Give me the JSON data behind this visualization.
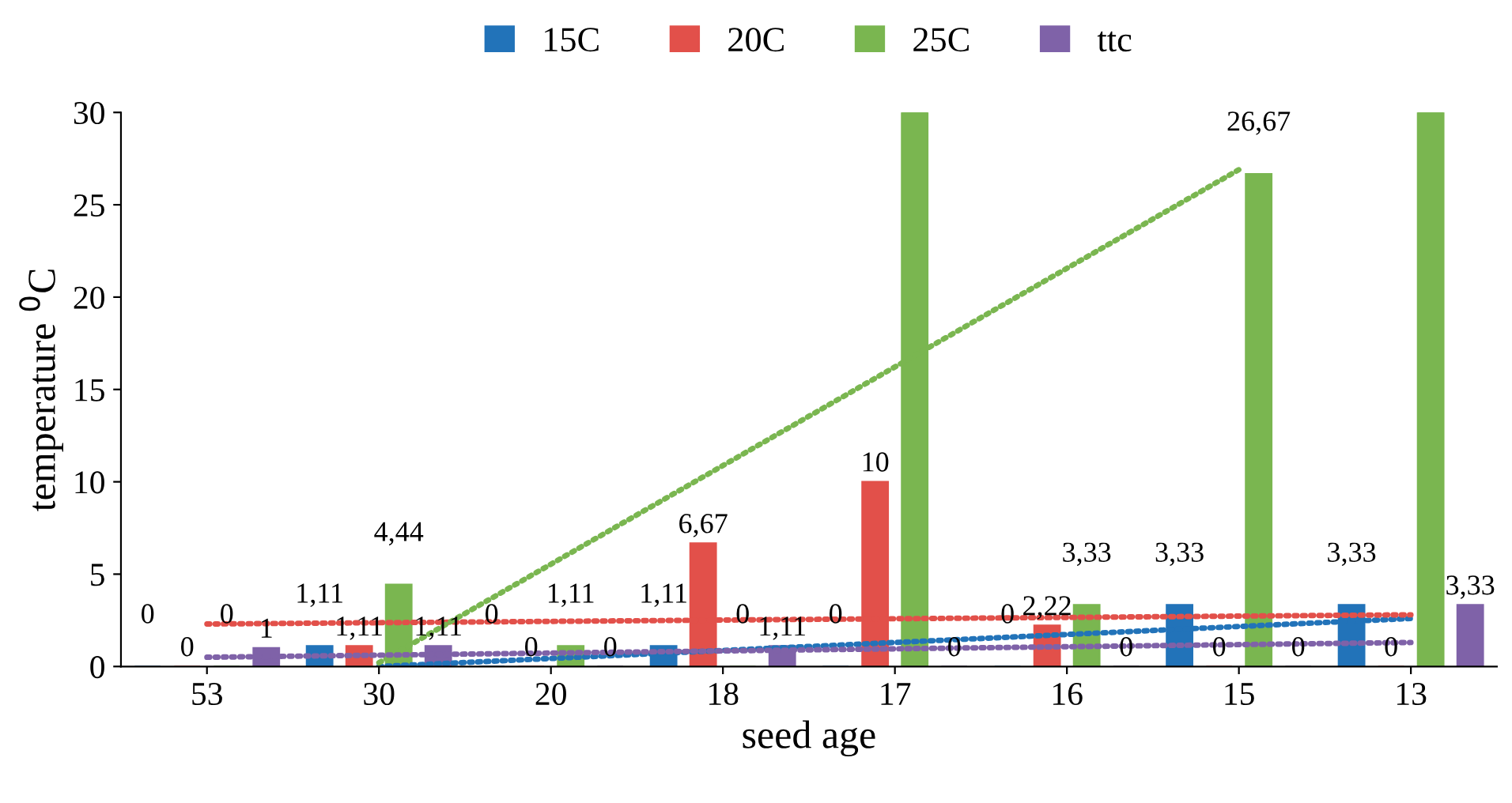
{
  "chart_data": {
    "type": "bar",
    "xlabel": "seed age",
    "ylabel": "temperature $^{0}$C",
    "categories": [
      "53",
      "30",
      "20",
      "18",
      "17",
      "16",
      "15",
      "13"
    ],
    "series": [
      {
        "name": "15C",
        "color": "#2273b9",
        "values": [
          0,
          1.11,
          0,
          1.11,
          0,
          0,
          3.33,
          3.33
        ],
        "value_labels": [
          "0",
          "1,11",
          "0",
          "1,11",
          "0",
          "0",
          "3,33",
          "3,33"
        ]
      },
      {
        "name": "20C",
        "color": "#e2504a",
        "values": [
          0,
          1.11,
          0,
          6.67,
          10,
          2.22,
          0,
          0
        ],
        "value_labels": [
          "0",
          "1,11",
          "0",
          "6,67",
          "10",
          "2,22",
          "0",
          "0"
        ]
      },
      {
        "name": "25C",
        "color": "#7ab650",
        "values": [
          0,
          4.44,
          1.11,
          0,
          30,
          3.33,
          26.67,
          30
        ],
        "value_labels": [
          "0",
          "4,44",
          "1,11",
          "0",
          null,
          "3,33",
          "26,67",
          null
        ]
      },
      {
        "name": "ttc",
        "color": "#7f62a8",
        "values": [
          1,
          1.11,
          0,
          1.11,
          0,
          0,
          0,
          3.33
        ],
        "value_labels": [
          "1",
          "1,11",
          "0",
          "1,11",
          "0",
          "0",
          "0",
          "3,33"
        ]
      },
      {
        "type": "line",
        "color": "#2273b9",
        "x": [
          "30",
          "13"
        ],
        "values": [
          0,
          2.6
        ],
        "line_style": "dotted"
      },
      {
        "type": "line",
        "color": "#e2504a",
        "x": [
          "53",
          "13"
        ],
        "values": [
          2.3,
          2.8
        ],
        "line_style": "dotted"
      },
      {
        "type": "line",
        "color": "#7ab650",
        "x": [
          "30",
          "15"
        ],
        "values": [
          0.2,
          26.9
        ],
        "line_style": "dotted"
      },
      {
        "type": "line",
        "color": "#7f62a8",
        "x": [
          "53",
          "13"
        ],
        "values": [
          0.5,
          1.3
        ],
        "line_style": "dotted"
      }
    ],
    "ylim": [
      0,
      30
    ],
    "yticks": [
      0,
      5,
      10,
      15,
      20,
      25,
      30
    ],
    "grid": false,
    "legend": "top"
  }
}
